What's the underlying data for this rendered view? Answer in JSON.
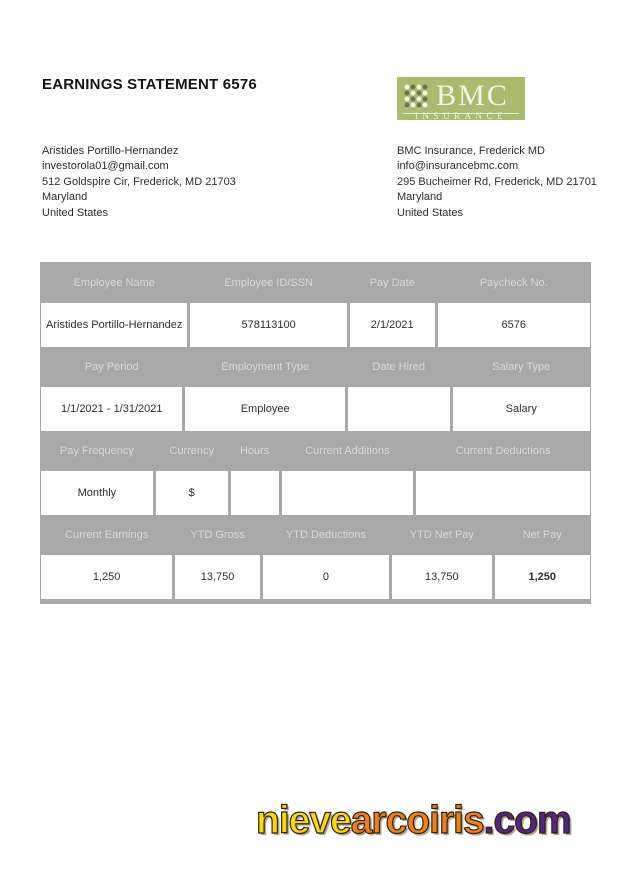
{
  "page": {
    "title": "EARNINGS STATEMENT 6576"
  },
  "logo": {
    "text": "BMC",
    "subtitle": "INSURANCE",
    "bg_color": "#a9bb6e",
    "dot_light_color": "#f4f6e6",
    "dot_dark_color": "#716e5c",
    "icon": "dot-grid-icon"
  },
  "employee": {
    "lines": [
      "Aristides Portillo-Hernandez",
      "investorola01@gmail.com",
      "512 Goldspire Cir, Frederick, MD 21703",
      "Maryland",
      "United States"
    ]
  },
  "employer": {
    "lines": [
      "BMC Insurance, Frederick MD",
      "info@insurancebmc.com",
      "295 Bucheimer Rd, Frederick, MD 21701",
      "Maryland",
      "United States"
    ]
  },
  "table": {
    "header_bg_color": "#a8a8a8",
    "header_text_color": "#d9d9d9",
    "sections": [
      {
        "headers": [
          "Employee Name",
          "Employee ID/SSN",
          "Pay Date",
          "Paycheck No."
        ],
        "values": [
          "Aristides Portillo-Hernandez",
          "578113100",
          "2/1/2021",
          "6576"
        ]
      },
      {
        "headers": [
          "Pay Period",
          "Employment Type",
          "Date Hired",
          "Salary Type"
        ],
        "values": [
          "1/1/2021 - 1/31/2021",
          "Employee",
          "",
          "Salary"
        ]
      },
      {
        "headers": [
          "Pay Frequency",
          "Currency",
          "Hours",
          "Current Additions",
          "Current Deductions"
        ],
        "values": [
          "Monthly",
          "$",
          "",
          "",
          ""
        ]
      },
      {
        "headers": [
          "Current Earnings",
          "YTD Gross",
          "YTD Deductions",
          "YTD Net Pay",
          "Net Pay"
        ],
        "values": [
          "1,250",
          "13,750",
          "0",
          "13,750",
          "1,250"
        ]
      }
    ]
  },
  "watermark": {
    "parts": [
      {
        "text": "nieve",
        "color": "#f7d911"
      },
      {
        "text": "arcoiris",
        "color": "#ee7f1b"
      },
      {
        "text": ".com",
        "color": "#4f2585"
      }
    ]
  }
}
